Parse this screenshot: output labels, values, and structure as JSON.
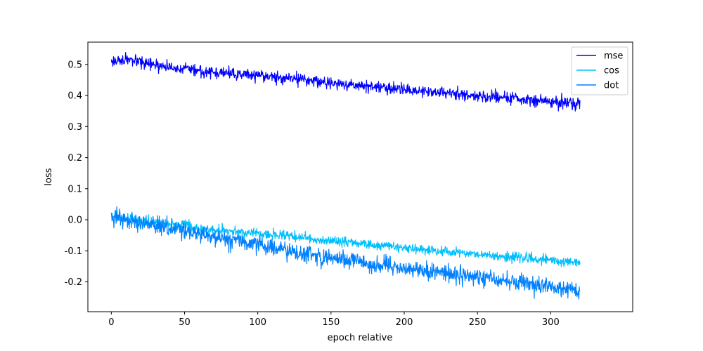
{
  "chart_data": {
    "type": "line",
    "title": "",
    "xlabel": "epoch relative",
    "ylabel": "loss",
    "xlim": [
      -16,
      356
    ],
    "ylim": [
      -0.296,
      0.572
    ],
    "xticks": [
      0,
      50,
      100,
      150,
      200,
      250,
      300
    ],
    "yticks": [
      -0.2,
      -0.1,
      0.0,
      0.1,
      0.2,
      0.3,
      0.4,
      0.5
    ],
    "grid": false,
    "legend_position": "top-right",
    "x_range": [
      0,
      320
    ],
    "noise_note": "series are noisy; values listed are trend anchor points at the given epochs",
    "series": [
      {
        "name": "mse",
        "color": "#0000ff",
        "x": [
          0,
          10,
          25,
          50,
          75,
          100,
          125,
          150,
          175,
          200,
          225,
          250,
          275,
          300,
          320
        ],
        "values": [
          0.51,
          0.515,
          0.5,
          0.485,
          0.472,
          0.465,
          0.455,
          0.44,
          0.43,
          0.42,
          0.41,
          0.4,
          0.39,
          0.38,
          0.375
        ],
        "noise": 0.012
      },
      {
        "name": "cos",
        "color": "#00bfff",
        "x": [
          0,
          25,
          50,
          75,
          100,
          125,
          150,
          175,
          200,
          225,
          250,
          275,
          300,
          320
        ],
        "values": [
          0.01,
          -0.005,
          -0.02,
          -0.035,
          -0.045,
          -0.055,
          -0.068,
          -0.078,
          -0.09,
          -0.1,
          -0.11,
          -0.12,
          -0.13,
          -0.14
        ],
        "noise": 0.01
      },
      {
        "name": "dot",
        "color": "#0080ff",
        "x": [
          0,
          25,
          50,
          75,
          100,
          125,
          150,
          175,
          200,
          225,
          250,
          275,
          300,
          320
        ],
        "values": [
          0.01,
          -0.015,
          -0.035,
          -0.06,
          -0.08,
          -0.105,
          -0.125,
          -0.14,
          -0.155,
          -0.17,
          -0.185,
          -0.2,
          -0.215,
          -0.23
        ],
        "noise": 0.018
      }
    ]
  }
}
